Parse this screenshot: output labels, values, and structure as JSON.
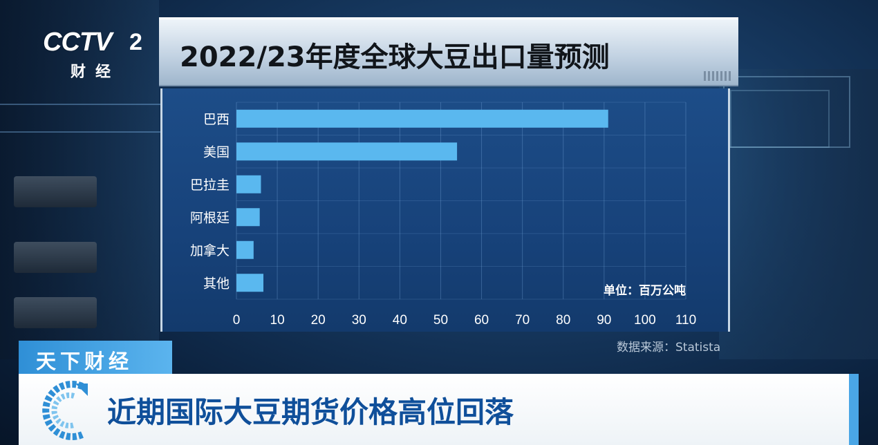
{
  "logo": {
    "brand": "CCTV",
    "channel": "2",
    "subtitle": "财经"
  },
  "title": "2022/23年度全球大豆出口量预测",
  "unit": "单位：百万公吨",
  "source": "数据来源：Statista",
  "banner": {
    "tag": "天下财经",
    "headline": "近期国际大豆期货价格高位回落"
  },
  "colors": {
    "bar": "#5ab8ef",
    "panel": "#17427a",
    "tag": "#3c9ee0",
    "headline": "#0f4f9a"
  },
  "chart_data": {
    "type": "bar",
    "orientation": "horizontal",
    "title": "2022/23年度全球大豆出口量预测",
    "categories": [
      "巴西",
      "美国",
      "巴拉圭",
      "阿根廷",
      "加拿大",
      "其他"
    ],
    "values": [
      91,
      54,
      6,
      5.7,
      4.2,
      6.6
    ],
    "xlim": [
      0,
      110
    ],
    "xticks": [
      0,
      10,
      20,
      30,
      40,
      50,
      60,
      70,
      80,
      90,
      100,
      110
    ],
    "grid": true
  }
}
